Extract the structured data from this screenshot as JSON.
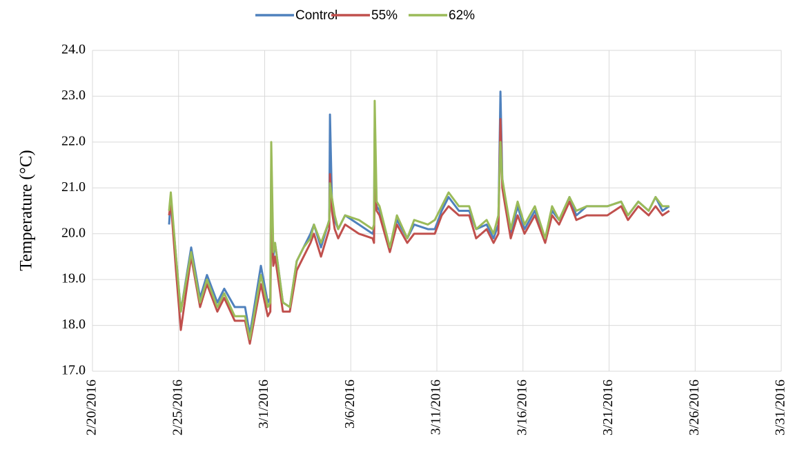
{
  "chart_data": {
    "type": "line",
    "ylabel": "Temperature (°C)",
    "x": [
      42424.45,
      42424.55,
      42424.85,
      42425.13,
      42425.73,
      42426.25,
      42426.65,
      42427.25,
      42427.65,
      42428.26,
      42428.86,
      42429.14,
      42429.78,
      42430.18,
      42430.33,
      42430.38,
      42430.5,
      42430.6,
      42431.06,
      42431.46,
      42431.86,
      42432.26,
      42432.66,
      42432.86,
      42433.27,
      42433.67,
      42433.75,
      42433.79,
      42433.9,
      42434.07,
      42434.27,
      42434.67,
      42435.47,
      42436.27,
      42436.35,
      42436.39,
      42436.5,
      42436.67,
      42437.27,
      42437.68,
      42438.28,
      42438.68,
      42439.48,
      42439.88,
      42440.28,
      42440.68,
      42441.28,
      42441.88,
      42442.28,
      42442.89,
      42443.29,
      42443.57,
      42443.69,
      42443.8,
      42443.97,
      42444.29,
      42444.69,
      42445.09,
      42445.69,
      42446.29,
      42446.69,
      42447.1,
      42447.7,
      42448.1,
      42448.7,
      42449.9,
      42450.7,
      42451.1,
      42451.7,
      42452.3,
      42452.7,
      42453.1,
      42453.5
    ],
    "series": [
      {
        "name": "Control",
        "color": "#4f81bd",
        "values": [
          20.2,
          20.8,
          19.5,
          18.3,
          19.7,
          18.6,
          19.1,
          18.5,
          18.8,
          18.4,
          18.4,
          17.8,
          19.3,
          18.5,
          18.6,
          21.5,
          19.5,
          19.8,
          18.5,
          18.4,
          19.4,
          19.7,
          20.0,
          20.2,
          19.7,
          20.2,
          20.3,
          22.6,
          20.8,
          20.3,
          20.1,
          20.4,
          20.2,
          20.0,
          20.1,
          22.3,
          20.6,
          20.5,
          19.7,
          20.3,
          19.9,
          20.2,
          20.1,
          20.1,
          20.5,
          20.8,
          20.5,
          20.5,
          20.1,
          20.2,
          19.9,
          20.2,
          23.1,
          21.2,
          20.7,
          20.0,
          20.6,
          20.1,
          20.5,
          19.9,
          20.5,
          20.3,
          20.8,
          20.4,
          20.6,
          20.6,
          20.7,
          20.4,
          20.7,
          20.5,
          20.8,
          20.5,
          20.6
        ]
      },
      {
        "name": "55%",
        "color": "#c0504d",
        "values": [
          20.4,
          20.7,
          19.2,
          17.9,
          19.5,
          18.4,
          18.9,
          18.3,
          18.6,
          18.1,
          18.1,
          17.6,
          18.9,
          18.2,
          18.3,
          20.3,
          19.3,
          19.5,
          18.3,
          18.3,
          19.2,
          19.5,
          19.8,
          20.0,
          19.5,
          20.0,
          20.1,
          21.3,
          20.5,
          20.1,
          19.9,
          20.2,
          20.0,
          19.9,
          19.8,
          21.0,
          20.5,
          20.4,
          19.6,
          20.2,
          19.8,
          20.0,
          20.0,
          20.0,
          20.4,
          20.6,
          20.4,
          20.4,
          19.9,
          20.1,
          19.8,
          20.0,
          22.5,
          21.0,
          20.6,
          19.9,
          20.4,
          20.0,
          20.4,
          19.8,
          20.4,
          20.2,
          20.7,
          20.3,
          20.4,
          20.4,
          20.6,
          20.3,
          20.6,
          20.4,
          20.6,
          20.4,
          20.5
        ]
      },
      {
        "name": "62%",
        "color": "#9bbb59",
        "values": [
          20.5,
          20.9,
          19.5,
          18.3,
          19.6,
          18.5,
          19.0,
          18.4,
          18.7,
          18.2,
          18.2,
          17.7,
          19.1,
          18.4,
          18.5,
          22.0,
          19.6,
          19.8,
          18.5,
          18.4,
          19.4,
          19.7,
          19.9,
          20.2,
          19.8,
          20.2,
          20.3,
          21.1,
          20.8,
          20.4,
          20.1,
          20.4,
          20.3,
          20.1,
          20.2,
          22.9,
          20.7,
          20.6,
          19.7,
          20.4,
          19.9,
          20.3,
          20.2,
          20.3,
          20.6,
          20.9,
          20.6,
          20.6,
          20.1,
          20.3,
          20.0,
          20.4,
          22.0,
          21.2,
          20.8,
          20.1,
          20.7,
          20.2,
          20.6,
          19.9,
          20.6,
          20.3,
          20.8,
          20.5,
          20.6,
          20.6,
          20.7,
          20.4,
          20.7,
          20.5,
          20.8,
          20.6,
          20.6
        ]
      }
    ],
    "xlim": [
      42420,
      42460
    ],
    "xticks": [
      {
        "value": 42420,
        "label": "2/20/2016"
      },
      {
        "value": 42425,
        "label": "2/25/2016"
      },
      {
        "value": 42430,
        "label": "3/1/2016"
      },
      {
        "value": 42435,
        "label": "3/6/2016"
      },
      {
        "value": 42440,
        "label": "3/11/2016"
      },
      {
        "value": 42445,
        "label": "3/16/2016"
      },
      {
        "value": 42450,
        "label": "3/21/2016"
      },
      {
        "value": 42455,
        "label": "3/26/2016"
      },
      {
        "value": 42460,
        "label": "3/31/2016"
      }
    ],
    "ylim": [
      17,
      24
    ],
    "yticks": [
      {
        "value": 17,
        "label": "17.0"
      },
      {
        "value": 18,
        "label": "18.0"
      },
      {
        "value": 19,
        "label": "19.0"
      },
      {
        "value": 20,
        "label": "20.0"
      },
      {
        "value": 21,
        "label": "21.0"
      },
      {
        "value": 22,
        "label": "22.0"
      },
      {
        "value": 23,
        "label": "23.0"
      },
      {
        "value": 24,
        "label": "24.0"
      }
    ],
    "grid": true,
    "legend": "top"
  }
}
